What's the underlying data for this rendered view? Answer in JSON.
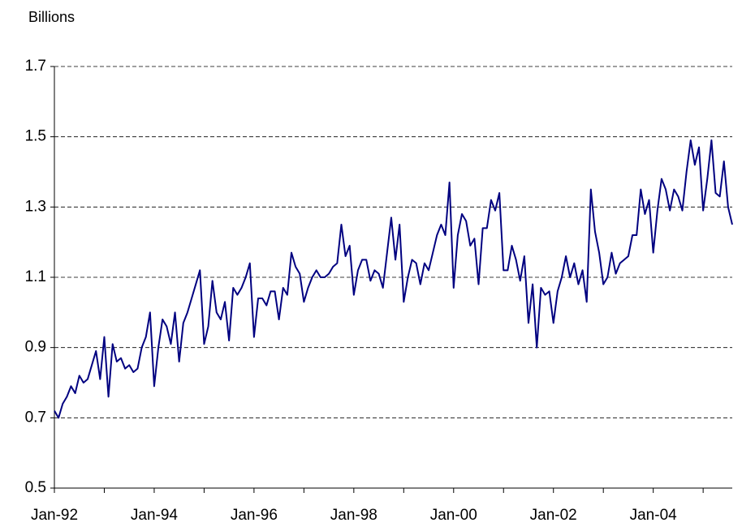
{
  "chart_data": {
    "type": "line",
    "y_label": "Billions",
    "x": [
      "1992-01",
      "1992-02",
      "1992-03",
      "1992-04",
      "1992-05",
      "1992-06",
      "1992-07",
      "1992-08",
      "1992-09",
      "1992-10",
      "1992-11",
      "1992-12",
      "1993-01",
      "1993-02",
      "1993-03",
      "1993-04",
      "1993-05",
      "1993-06",
      "1993-07",
      "1993-08",
      "1993-09",
      "1993-10",
      "1993-11",
      "1993-12",
      "1994-01",
      "1994-02",
      "1994-03",
      "1994-04",
      "1994-05",
      "1994-06",
      "1994-07",
      "1994-08",
      "1994-09",
      "1994-10",
      "1994-11",
      "1994-12",
      "1995-01",
      "1995-02",
      "1995-03",
      "1995-04",
      "1995-05",
      "1995-06",
      "1995-07",
      "1995-08",
      "1995-09",
      "1995-10",
      "1995-11",
      "1995-12",
      "1996-01",
      "1996-02",
      "1996-03",
      "1996-04",
      "1996-05",
      "1996-06",
      "1996-07",
      "1996-08",
      "1996-09",
      "1996-10",
      "1996-11",
      "1996-12",
      "1997-01",
      "1997-02",
      "1997-03",
      "1997-04",
      "1997-05",
      "1997-06",
      "1997-07",
      "1997-08",
      "1997-09",
      "1997-10",
      "1997-11",
      "1997-12",
      "1998-01",
      "1998-02",
      "1998-03",
      "1998-04",
      "1998-05",
      "1998-06",
      "1998-07",
      "1998-08",
      "1998-09",
      "1998-10",
      "1998-11",
      "1998-12",
      "1999-01",
      "1999-02",
      "1999-03",
      "1999-04",
      "1999-05",
      "1999-06",
      "1999-07",
      "1999-08",
      "1999-09",
      "1999-10",
      "1999-11",
      "1999-12",
      "2000-01",
      "2000-02",
      "2000-03",
      "2000-04",
      "2000-05",
      "2000-06",
      "2000-07",
      "2000-08",
      "2000-09",
      "2000-10",
      "2000-11",
      "2000-12",
      "2001-01",
      "2001-02",
      "2001-03",
      "2001-04",
      "2001-05",
      "2001-06",
      "2001-07",
      "2001-08",
      "2001-09",
      "2001-10",
      "2001-11",
      "2001-12",
      "2002-01",
      "2002-02",
      "2002-03",
      "2002-04",
      "2002-05",
      "2002-06",
      "2002-07",
      "2002-08",
      "2002-09",
      "2002-10",
      "2002-11",
      "2002-12",
      "2003-01",
      "2003-02",
      "2003-03",
      "2003-04",
      "2003-05",
      "2003-06",
      "2003-07",
      "2003-08",
      "2003-09",
      "2003-10",
      "2003-11",
      "2003-12",
      "2004-01",
      "2004-02",
      "2004-03",
      "2004-04",
      "2004-05",
      "2004-06",
      "2004-07",
      "2004-08",
      "2004-09",
      "2004-10",
      "2004-11",
      "2004-12",
      "2005-01",
      "2005-02",
      "2005-03",
      "2005-04",
      "2005-05",
      "2005-06",
      "2005-07",
      "2005-08"
    ],
    "series": [
      {
        "color": "#000080",
        "values": [
          0.72,
          0.7,
          0.74,
          0.76,
          0.79,
          0.77,
          0.82,
          0.8,
          0.81,
          0.85,
          0.89,
          0.81,
          0.93,
          0.76,
          0.91,
          0.86,
          0.87,
          0.84,
          0.85,
          0.83,
          0.84,
          0.9,
          0.93,
          1.0,
          0.79,
          0.9,
          0.98,
          0.96,
          0.91,
          1.0,
          0.86,
          0.97,
          1.0,
          1.04,
          1.08,
          1.12,
          0.91,
          0.96,
          1.09,
          1.0,
          0.98,
          1.03,
          0.92,
          1.07,
          1.05,
          1.07,
          1.1,
          1.14,
          0.93,
          1.04,
          1.04,
          1.02,
          1.06,
          1.06,
          0.98,
          1.07,
          1.05,
          1.17,
          1.13,
          1.11,
          1.03,
          1.07,
          1.1,
          1.12,
          1.1,
          1.1,
          1.11,
          1.13,
          1.14,
          1.25,
          1.16,
          1.19,
          1.05,
          1.12,
          1.15,
          1.15,
          1.09,
          1.12,
          1.11,
          1.07,
          1.17,
          1.27,
          1.15,
          1.25,
          1.03,
          1.1,
          1.15,
          1.14,
          1.08,
          1.14,
          1.12,
          1.17,
          1.22,
          1.25,
          1.22,
          1.37,
          1.07,
          1.22,
          1.28,
          1.26,
          1.19,
          1.21,
          1.08,
          1.24,
          1.24,
          1.32,
          1.29,
          1.34,
          1.12,
          1.12,
          1.19,
          1.15,
          1.09,
          1.16,
          0.97,
          1.08,
          0.9,
          1.07,
          1.05,
          1.06,
          0.97,
          1.06,
          1.1,
          1.16,
          1.1,
          1.14,
          1.08,
          1.12,
          1.03,
          1.35,
          1.23,
          1.17,
          1.08,
          1.1,
          1.17,
          1.11,
          1.14,
          1.15,
          1.16,
          1.22,
          1.22,
          1.35,
          1.28,
          1.32,
          1.17,
          1.29,
          1.38,
          1.35,
          1.29,
          1.35,
          1.33,
          1.29,
          1.4,
          1.49,
          1.42,
          1.47,
          1.29,
          1.38,
          1.49,
          1.34,
          1.33,
          1.43,
          1.3,
          1.25
        ]
      }
    ],
    "xlim": [
      "1992-01",
      "2005-08"
    ],
    "xticks": [
      {
        "value": "1992-01",
        "label": "Jan-92"
      },
      {
        "value": "1994-01",
        "label": "Jan-94"
      },
      {
        "value": "1996-01",
        "label": "Jan-96"
      },
      {
        "value": "1998-01",
        "label": "Jan-98"
      },
      {
        "value": "2000-01",
        "label": "Jan-00"
      },
      {
        "value": "2002-01",
        "label": "Jan-02"
      },
      {
        "value": "2004-01",
        "label": "Jan-04"
      }
    ],
    "ylim": [
      0.5,
      1.7
    ],
    "yticks": [
      0.5,
      0.7,
      0.9,
      1.1,
      1.3,
      1.5,
      1.7
    ],
    "grid": true
  }
}
